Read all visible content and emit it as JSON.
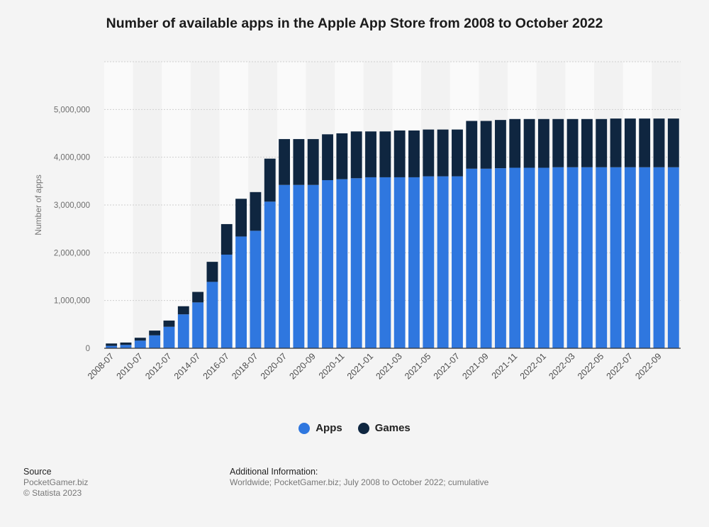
{
  "title": "Number of available apps in the Apple App Store from 2008 to October 2022",
  "colors": {
    "apps": "#2f77df",
    "games": "#0f2640",
    "band_light": "#fafafa",
    "band_dark": "#f2f2f2",
    "grid": "#cfcfcf",
    "axis": "#333333"
  },
  "legend": {
    "apps": "Apps",
    "games": "Games"
  },
  "source": {
    "heading": "Source",
    "line1": "PocketGamer.biz",
    "line2": "© Statista 2023"
  },
  "additional": {
    "heading": "Additional Information:",
    "text": "Worldwide; PocketGamer.biz; July 2008 to October 2022; cumulative"
  },
  "chart_data": {
    "type": "bar",
    "stacked": true,
    "title": "Number of available apps in the Apple App Store from 2008 to October 2022",
    "xlabel": "",
    "ylabel": "Number of apps",
    "ylim": [
      0,
      6000000
    ],
    "yticks": [
      "0",
      "1,000,000",
      "2,000,000",
      "3,000,000",
      "4,000,000",
      "5,000,000"
    ],
    "ytick_values": [
      0,
      1000000,
      2000000,
      3000000,
      4000000,
      5000000
    ],
    "grid": true,
    "legend_position": "bottom",
    "categories": [
      "2008-07",
      "2009-07",
      "2010-07",
      "2011-07",
      "2012-07",
      "2013-07",
      "2014-07",
      "2015-07",
      "2016-07",
      "2017-07",
      "2018-07",
      "2019-07",
      "2020-07",
      "2020-08",
      "2020-09",
      "2020-10",
      "2020-11",
      "2020-12",
      "2021-01",
      "2021-02",
      "2021-03",
      "2021-04",
      "2021-05",
      "2021-06",
      "2021-07",
      "2021-08",
      "2021-09",
      "2021-10",
      "2021-11",
      "2021-12",
      "2022-01",
      "2022-02",
      "2022-03",
      "2022-04",
      "2022-05",
      "2022-06",
      "2022-07",
      "2022-08",
      "2022-09",
      "2022-10"
    ],
    "x_tick_labels": [
      "2008-07",
      "2010-07",
      "2012-07",
      "2014-07",
      "2016-07",
      "2018-07",
      "2020-07",
      "2020-09",
      "2020-11",
      "2021-01",
      "2021-03",
      "2021-05",
      "2021-07",
      "2021-09",
      "2021-11",
      "2022-01",
      "2022-03",
      "2022-05",
      "2022-07",
      "2022-09"
    ],
    "series": [
      {
        "name": "Apps",
        "values": [
          50000,
          70000,
          160000,
          270000,
          450000,
          710000,
          960000,
          1390000,
          1960000,
          2340000,
          2460000,
          3070000,
          3420000,
          3420000,
          3420000,
          3520000,
          3540000,
          3560000,
          3580000,
          3580000,
          3580000,
          3580000,
          3600000,
          3600000,
          3600000,
          3760000,
          3760000,
          3770000,
          3780000,
          3780000,
          3780000,
          3790000,
          3790000,
          3790000,
          3790000,
          3790000,
          3790000,
          3790000,
          3790000,
          3790000
        ]
      },
      {
        "name": "Games",
        "values": [
          50000,
          50000,
          60000,
          100000,
          130000,
          170000,
          220000,
          420000,
          640000,
          790000,
          810000,
          900000,
          960000,
          960000,
          960000,
          960000,
          960000,
          980000,
          960000,
          960000,
          980000,
          980000,
          980000,
          980000,
          980000,
          1000000,
          1000000,
          1010000,
          1020000,
          1020000,
          1020000,
          1010000,
          1010000,
          1010000,
          1010000,
          1020000,
          1020000,
          1020000,
          1020000,
          1020000
        ]
      }
    ]
  }
}
